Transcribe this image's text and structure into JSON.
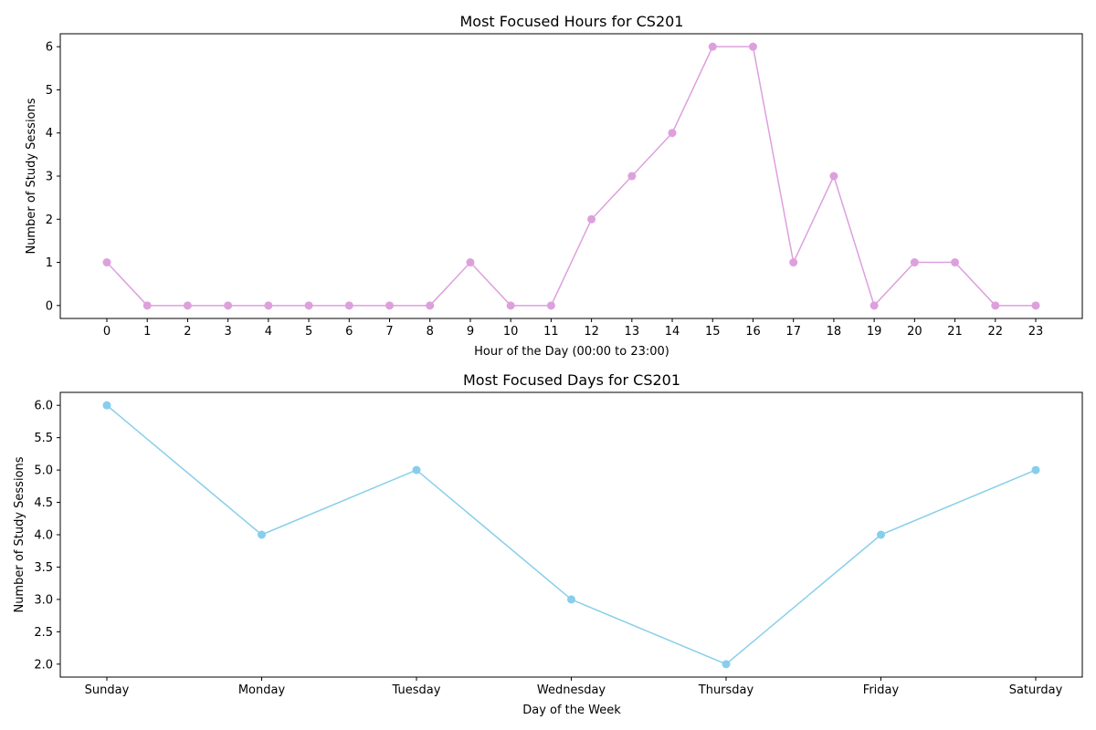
{
  "chart_data": [
    {
      "type": "line",
      "title": "Most Focused Hours for CS201",
      "xlabel": "Hour of the Day (00:00 to 23:00)",
      "ylabel": "Number of Study Sessions",
      "categories": [
        "0",
        "1",
        "2",
        "3",
        "4",
        "5",
        "6",
        "7",
        "8",
        "9",
        "10",
        "11",
        "12",
        "13",
        "14",
        "15",
        "16",
        "17",
        "18",
        "19",
        "20",
        "21",
        "22",
        "23"
      ],
      "series": [
        {
          "values": [
            1,
            0,
            0,
            0,
            0,
            0,
            0,
            0,
            0,
            1,
            0,
            0,
            2,
            3,
            4,
            6,
            6,
            1,
            3,
            0,
            1,
            1,
            0,
            0
          ],
          "color": "#dda0dd"
        }
      ],
      "yticks": [
        "0",
        "1",
        "2",
        "3",
        "4",
        "5",
        "6"
      ],
      "ylim": [
        -0.3,
        6.3
      ],
      "grid": false,
      "legend": "none",
      "marker": "circle"
    },
    {
      "type": "line",
      "title": "Most Focused Days for CS201",
      "xlabel": "Day of the Week",
      "ylabel": "Number of Study Sessions",
      "categories": [
        "Sunday",
        "Monday",
        "Tuesday",
        "Wednesday",
        "Thursday",
        "Friday",
        "Saturday"
      ],
      "series": [
        {
          "values": [
            6,
            4,
            5,
            3,
            2,
            4,
            5
          ],
          "color": "#87ceeb"
        }
      ],
      "yticks": [
        "2.0",
        "2.5",
        "3.0",
        "3.5",
        "4.0",
        "4.5",
        "5.0",
        "5.5",
        "6.0"
      ],
      "ylim": [
        1.8,
        6.2
      ],
      "grid": false,
      "legend": "none",
      "marker": "circle"
    }
  ]
}
